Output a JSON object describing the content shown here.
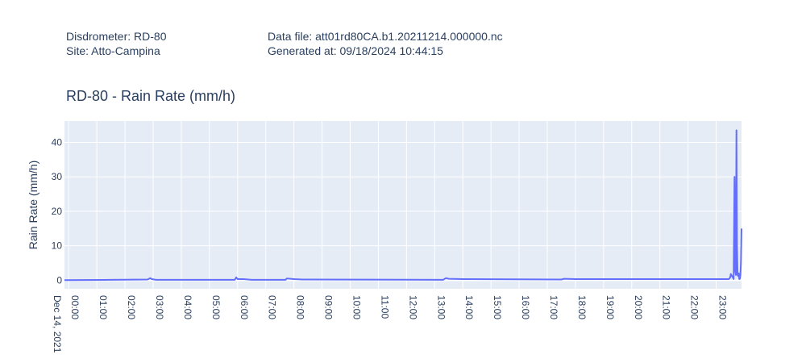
{
  "header": {
    "disdrometer": "Disdrometer: RD-80",
    "site": "Site: Atto-Campina",
    "data_file": "Data file: att01rd80CA.b1.20211214.000000.nc",
    "generated_at": "Generated at: 09/18/2024 10:44:15"
  },
  "chart_data": {
    "type": "line",
    "title": "RD-80 - Rain Rate (mm/h)",
    "xlabel": "",
    "ylabel": "Rain Rate (mm/h)",
    "xlim_hours": [
      -0.15,
      23.9
    ],
    "ylim": [
      -2.5,
      46.2
    ],
    "grid": true,
    "x_date_label": "Dec 14, 2021",
    "x_tick_hours": [
      0,
      1,
      2,
      3,
      4,
      5,
      6,
      7,
      8,
      9,
      10,
      11,
      12,
      13,
      14,
      15,
      16,
      17,
      18,
      19,
      20,
      21,
      22,
      23
    ],
    "x_tick_labels": [
      "00:00",
      "01:00",
      "02:00",
      "03:00",
      "04:00",
      "05:00",
      "06:00",
      "07:00",
      "08:00",
      "09:00",
      "10:00",
      "11:00",
      "12:00",
      "13:00",
      "14:00",
      "15:00",
      "16:00",
      "17:00",
      "18:00",
      "19:00",
      "20:00",
      "21:00",
      "22:00",
      "23:00"
    ],
    "y_ticks": [
      0,
      10,
      20,
      30,
      40
    ],
    "y_tick_labels": [
      "0",
      "10",
      "20",
      "30",
      "40"
    ],
    "line_color": "#636efa",
    "series": [
      {
        "name": "Rain Rate",
        "x_hours": [
          -0.15,
          1.5,
          2.8,
          2.9,
          2.95,
          3.1,
          5.9,
          5.95,
          6.0,
          6.2,
          6.5,
          7.7,
          7.75,
          8.0,
          8.3,
          13.3,
          13.4,
          13.5,
          14.0,
          17.5,
          17.6,
          18.0,
          23.45,
          23.5,
          23.52,
          23.58,
          23.62,
          23.65,
          23.67,
          23.7,
          23.72,
          23.74,
          23.76,
          23.78,
          23.8,
          23.82,
          23.84,
          23.86,
          23.88,
          23.9
        ],
        "y": [
          0,
          0.1,
          0.2,
          0.6,
          0.3,
          0.1,
          0.1,
          0.8,
          0.3,
          0.3,
          0.1,
          0.1,
          0.5,
          0.3,
          0.2,
          0.1,
          0.6,
          0.4,
          0.3,
          0.2,
          0.4,
          0.3,
          0.3,
          0.8,
          1.8,
          1.0,
          0.3,
          30.0,
          3.0,
          1.5,
          43.5,
          10.0,
          1.5,
          1.2,
          2.0,
          0.3,
          0.4,
          1.5,
          5.0,
          15.0
        ]
      }
    ]
  }
}
